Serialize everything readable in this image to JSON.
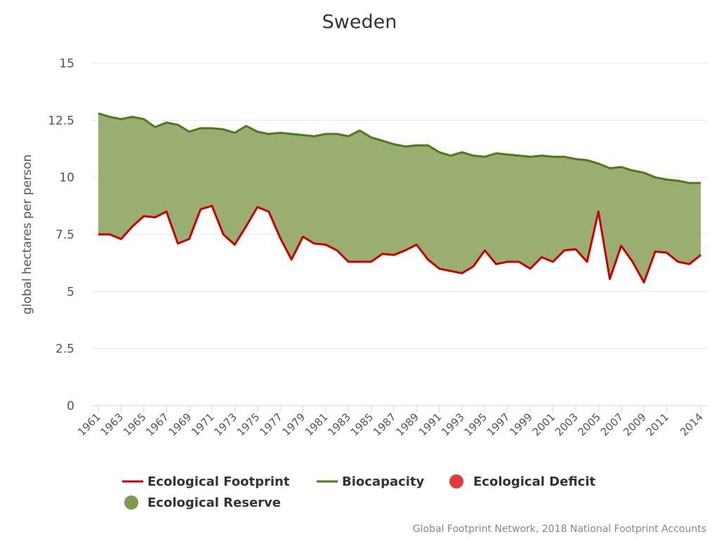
{
  "chart_data": {
    "type": "area",
    "title": "Sweden",
    "ylabel": "global hectares per person",
    "ylim": [
      0,
      15
    ],
    "yticks": [
      0,
      2.5,
      5,
      7.5,
      10,
      12.5,
      15
    ],
    "ytick_labels": [
      "0",
      "2.5",
      "5",
      "7.5",
      "10",
      "12.5",
      "15"
    ],
    "x": [
      1961,
      1962,
      1963,
      1964,
      1965,
      1966,
      1967,
      1968,
      1969,
      1970,
      1971,
      1972,
      1973,
      1974,
      1975,
      1976,
      1977,
      1978,
      1979,
      1980,
      1981,
      1982,
      1983,
      1984,
      1985,
      1986,
      1987,
      1988,
      1989,
      1990,
      1991,
      1992,
      1993,
      1994,
      1995,
      1996,
      1997,
      1998,
      1999,
      2000,
      2001,
      2002,
      2003,
      2004,
      2005,
      2006,
      2007,
      2008,
      2009,
      2010,
      2011,
      2012,
      2013,
      2014
    ],
    "xtick_labels": [
      "1961",
      "1963",
      "1965",
      "1967",
      "1969",
      "1971",
      "1973",
      "1975",
      "1977",
      "1979",
      "1981",
      "1983",
      "1985",
      "1987",
      "1989",
      "1991",
      "1993",
      "1995",
      "1997",
      "1999",
      "2001",
      "2003",
      "2005",
      "2007",
      "2009",
      "2011",
      "2014"
    ],
    "grid": true,
    "legend_position": "bottom",
    "series": [
      {
        "name": "Ecological Footprint",
        "color": "#cc0000",
        "values": [
          7.5,
          7.5,
          7.3,
          7.85,
          8.3,
          8.25,
          8.5,
          7.1,
          7.3,
          8.6,
          8.75,
          7.5,
          7.05,
          7.85,
          8.7,
          8.5,
          7.35,
          6.4,
          7.4,
          7.1,
          7.05,
          6.8,
          6.3,
          6.3,
          6.3,
          6.65,
          6.6,
          6.8,
          7.05,
          6.4,
          6.0,
          5.9,
          5.8,
          6.1,
          6.8,
          6.2,
          6.3,
          6.3,
          6.0,
          6.5,
          6.3,
          6.8,
          6.85,
          6.3,
          8.5,
          5.55,
          7.0,
          6.3,
          5.4,
          6.75,
          6.7,
          6.3,
          6.2,
          6.6
        ]
      },
      {
        "name": "Biocapacity",
        "color": "#4f7a1a",
        "values": [
          12.8,
          12.65,
          12.55,
          12.65,
          12.55,
          12.2,
          12.4,
          12.3,
          12.0,
          12.15,
          12.15,
          12.1,
          11.95,
          12.25,
          12.0,
          11.9,
          11.95,
          11.9,
          11.85,
          11.8,
          11.9,
          11.9,
          11.8,
          12.05,
          11.75,
          11.6,
          11.45,
          11.35,
          11.4,
          11.4,
          11.1,
          10.95,
          11.1,
          10.95,
          10.9,
          11.05,
          11.0,
          10.95,
          10.9,
          10.95,
          10.9,
          10.9,
          10.8,
          10.75,
          10.6,
          10.4,
          10.45,
          10.3,
          10.2,
          10.0,
          9.9,
          9.85,
          9.75,
          9.75
        ]
      }
    ],
    "fill_legend": [
      {
        "name": "Ecological Deficit",
        "color": "#e03c3c"
      },
      {
        "name": "Ecological Reserve",
        "color": "#7f9a4f"
      }
    ],
    "reserve_fill_color": "#9aae72",
    "credit": "Global Footprint Network, 2018 National Footprint Accounts"
  }
}
